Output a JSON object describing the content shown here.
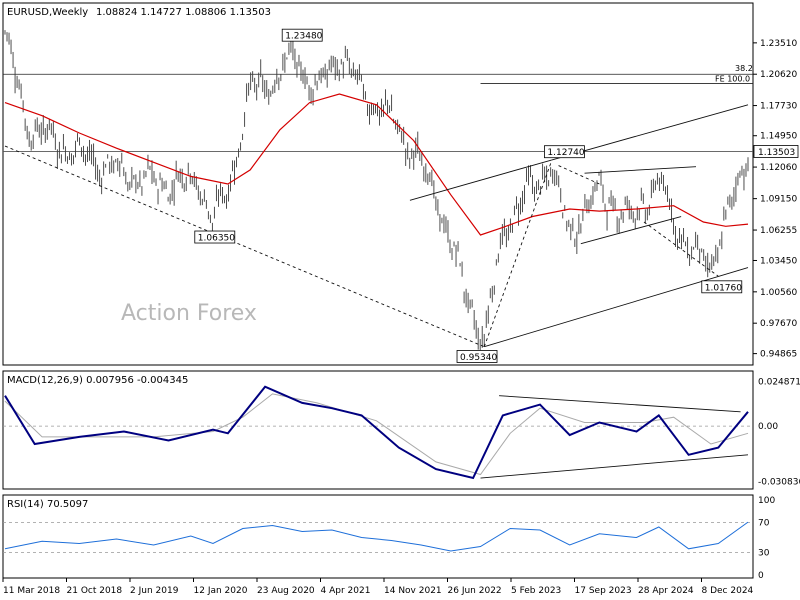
{
  "chart_data": [
    {
      "type": "candlestick",
      "title": "EURUSD,Weekly",
      "ohlc_label": "1.08824 1.14727 1.08806 1.13503",
      "last_price": "1.13503",
      "watermark": "Action Forex",
      "y_axis_ticks": [
        "1.23510",
        "1.20620",
        "1.17730",
        "1.14950",
        "1.12060",
        "1.09150",
        "1.06255",
        "1.03450",
        "1.00560",
        "0.97670",
        "0.94865"
      ],
      "y_range": [
        0.94,
        1.27
      ],
      "x_axis_ticks": [
        "11 Mar 2018",
        "21 Oct 2018",
        "2 Jun 2019",
        "12 Jan 2020",
        "23 Aug 2020",
        "4 Apr 2021",
        "14 Nov 2021",
        "26 Jun 2022",
        "5 Feb 2023",
        "17 Sep 2023",
        "28 Apr 2024",
        "8 Dec 2024"
      ],
      "price_labels": [
        {
          "text": "1.23480",
          "value": 1.2348,
          "date": "Jan 2021"
        },
        {
          "text": "1.06350",
          "value": 1.0635,
          "date": "Mar 2020"
        },
        {
          "text": "0.95340",
          "value": 0.9534,
          "date": "Sep 2022"
        },
        {
          "text": "1.12740",
          "value": 1.1274,
          "date": "Jul 2023"
        },
        {
          "text": "1.01760",
          "value": 1.0176,
          "date": "Jan 2025"
        }
      ],
      "fib_labels": [
        "38.2",
        "FE 100.0"
      ],
      "fib_levels": [
        1.2062,
        1.1977
      ],
      "horizontal_level": 1.135,
      "moving_average": [
        {
          "t": 0,
          "v": 1.18
        },
        {
          "t": 0.05,
          "v": 1.168
        },
        {
          "t": 0.1,
          "v": 1.152
        },
        {
          "t": 0.15,
          "v": 1.138
        },
        {
          "t": 0.2,
          "v": 1.125
        },
        {
          "t": 0.25,
          "v": 1.112
        },
        {
          "t": 0.3,
          "v": 1.105
        },
        {
          "t": 0.33,
          "v": 1.118
        },
        {
          "t": 0.37,
          "v": 1.155
        },
        {
          "t": 0.41,
          "v": 1.18
        },
        {
          "t": 0.45,
          "v": 1.188
        },
        {
          "t": 0.5,
          "v": 1.178
        },
        {
          "t": 0.55,
          "v": 1.145
        },
        {
          "t": 0.6,
          "v": 1.095
        },
        {
          "t": 0.64,
          "v": 1.058
        },
        {
          "t": 0.67,
          "v": 1.065
        },
        {
          "t": 0.71,
          "v": 1.075
        },
        {
          "t": 0.76,
          "v": 1.082
        },
        {
          "t": 0.8,
          "v": 1.08
        },
        {
          "t": 0.85,
          "v": 1.082
        },
        {
          "t": 0.9,
          "v": 1.085
        },
        {
          "t": 0.94,
          "v": 1.07
        },
        {
          "t": 0.97,
          "v": 1.066
        },
        {
          "t": 1,
          "v": 1.068
        }
      ],
      "price_path": [
        {
          "t": 0,
          "v": 1.245
        },
        {
          "t": 0.03,
          "v": 1.16
        },
        {
          "t": 0.08,
          "v": 1.14
        },
        {
          "t": 0.14,
          "v": 1.12
        },
        {
          "t": 0.2,
          "v": 1.105
        },
        {
          "t": 0.26,
          "v": 1.11
        },
        {
          "t": 0.28,
          "v": 1.07
        },
        {
          "t": 0.3,
          "v": 1.1
        },
        {
          "t": 0.33,
          "v": 1.19
        },
        {
          "t": 0.36,
          "v": 1.2
        },
        {
          "t": 0.39,
          "v": 1.222
        },
        {
          "t": 0.42,
          "v": 1.19
        },
        {
          "t": 0.45,
          "v": 1.225
        },
        {
          "t": 0.48,
          "v": 1.19
        },
        {
          "t": 0.52,
          "v": 1.165
        },
        {
          "t": 0.55,
          "v": 1.135
        },
        {
          "t": 0.58,
          "v": 1.095
        },
        {
          "t": 0.62,
          "v": 1.005
        },
        {
          "t": 0.645,
          "v": 0.96
        },
        {
          "t": 0.67,
          "v": 1.06
        },
        {
          "t": 0.7,
          "v": 1.095
        },
        {
          "t": 0.735,
          "v": 1.12
        },
        {
          "t": 0.76,
          "v": 1.06
        },
        {
          "t": 0.8,
          "v": 1.1
        },
        {
          "t": 0.84,
          "v": 1.072
        },
        {
          "t": 0.88,
          "v": 1.105
        },
        {
          "t": 0.92,
          "v": 1.045
        },
        {
          "t": 0.95,
          "v": 1.03
        },
        {
          "t": 0.98,
          "v": 1.09
        },
        {
          "t": 1,
          "v": 1.135
        }
      ]
    },
    {
      "type": "line",
      "title": "MACD(12,26,9) 0.007956 -0.004345",
      "y_axis_ticks": [
        "0.024871",
        "0.00",
        "-0.030836"
      ],
      "y_range": [
        -0.034,
        0.028
      ],
      "macd": [
        {
          "t": 0,
          "v": 0.017
        },
        {
          "t": 0.04,
          "v": -0.01
        },
        {
          "t": 0.1,
          "v": -0.006
        },
        {
          "t": 0.16,
          "v": -0.003
        },
        {
          "t": 0.22,
          "v": -0.008
        },
        {
          "t": 0.28,
          "v": -0.002
        },
        {
          "t": 0.3,
          "v": -0.004
        },
        {
          "t": 0.35,
          "v": 0.022
        },
        {
          "t": 0.4,
          "v": 0.013
        },
        {
          "t": 0.44,
          "v": 0.01
        },
        {
          "t": 0.48,
          "v": 0.006
        },
        {
          "t": 0.53,
          "v": -0.012
        },
        {
          "t": 0.58,
          "v": -0.024
        },
        {
          "t": 0.63,
          "v": -0.029
        },
        {
          "t": 0.67,
          "v": 0.006
        },
        {
          "t": 0.72,
          "v": 0.012
        },
        {
          "t": 0.76,
          "v": -0.005
        },
        {
          "t": 0.8,
          "v": 0.002
        },
        {
          "t": 0.85,
          "v": -0.003
        },
        {
          "t": 0.88,
          "v": 0.006
        },
        {
          "t": 0.92,
          "v": -0.016
        },
        {
          "t": 0.96,
          "v": -0.012
        },
        {
          "t": 1,
          "v": 0.008
        }
      ],
      "signal": [
        {
          "t": 0,
          "v": 0.014
        },
        {
          "t": 0.05,
          "v": -0.006
        },
        {
          "t": 0.12,
          "v": -0.006
        },
        {
          "t": 0.2,
          "v": -0.006
        },
        {
          "t": 0.28,
          "v": -0.003
        },
        {
          "t": 0.32,
          "v": 0.005
        },
        {
          "t": 0.36,
          "v": 0.018
        },
        {
          "t": 0.42,
          "v": 0.013
        },
        {
          "t": 0.5,
          "v": 0.003
        },
        {
          "t": 0.58,
          "v": -0.02
        },
        {
          "t": 0.64,
          "v": -0.027
        },
        {
          "t": 0.68,
          "v": -0.004
        },
        {
          "t": 0.72,
          "v": 0.01
        },
        {
          "t": 0.78,
          "v": 0.002
        },
        {
          "t": 0.86,
          "v": 0.002
        },
        {
          "t": 0.9,
          "v": 0.005
        },
        {
          "t": 0.95,
          "v": -0.01
        },
        {
          "t": 1,
          "v": -0.004
        }
      ]
    },
    {
      "type": "line",
      "title": "RSI(14) 70.5097",
      "y_axis_ticks": [
        "100",
        "70",
        "30",
        "0"
      ],
      "y_range": [
        0,
        100
      ],
      "rsi": [
        {
          "t": 0,
          "v": 35
        },
        {
          "t": 0.05,
          "v": 45
        },
        {
          "t": 0.1,
          "v": 42
        },
        {
          "t": 0.15,
          "v": 48
        },
        {
          "t": 0.2,
          "v": 40
        },
        {
          "t": 0.25,
          "v": 52
        },
        {
          "t": 0.28,
          "v": 42
        },
        {
          "t": 0.32,
          "v": 62
        },
        {
          "t": 0.36,
          "v": 66
        },
        {
          "t": 0.4,
          "v": 58
        },
        {
          "t": 0.44,
          "v": 60
        },
        {
          "t": 0.48,
          "v": 50
        },
        {
          "t": 0.52,
          "v": 46
        },
        {
          "t": 0.56,
          "v": 40
        },
        {
          "t": 0.6,
          "v": 32
        },
        {
          "t": 0.64,
          "v": 38
        },
        {
          "t": 0.68,
          "v": 62
        },
        {
          "t": 0.72,
          "v": 60
        },
        {
          "t": 0.76,
          "v": 40
        },
        {
          "t": 0.8,
          "v": 55
        },
        {
          "t": 0.85,
          "v": 50
        },
        {
          "t": 0.88,
          "v": 64
        },
        {
          "t": 0.92,
          "v": 35
        },
        {
          "t": 0.96,
          "v": 42
        },
        {
          "t": 1,
          "v": 70.5
        }
      ]
    }
  ]
}
